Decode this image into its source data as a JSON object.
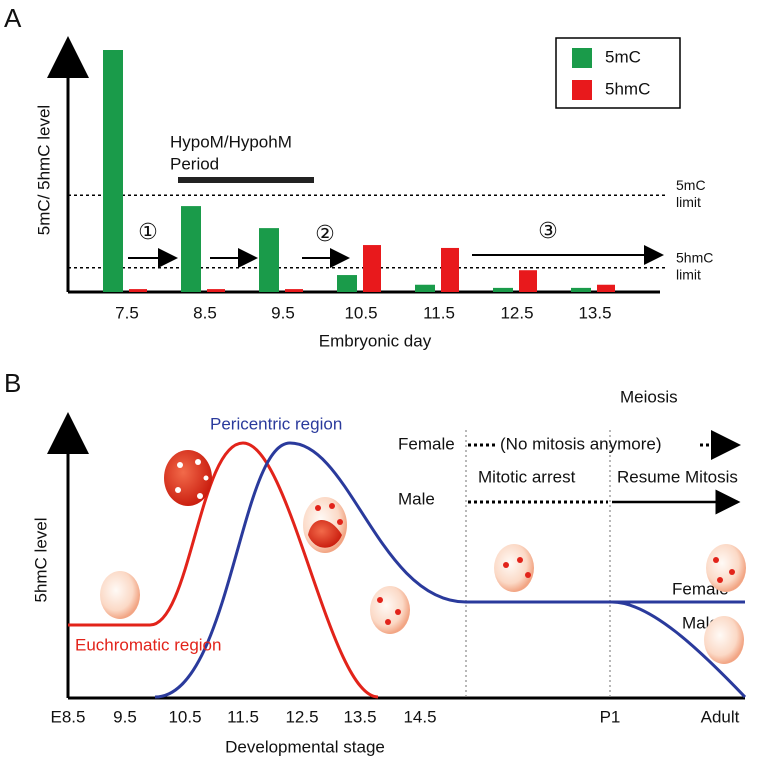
{
  "chart_data": {
    "type": "bar",
    "panel_label": "A",
    "y_label": "5mC/ 5hmC level",
    "x_label": "Embryonic day",
    "categories": [
      "7.5",
      "8.5",
      "9.5",
      "10.5",
      "11.5",
      "12.5",
      "13.5"
    ],
    "series": [
      {
        "name": "5mC",
        "color": "#1a9b4a",
        "values": [
          100,
          35.5,
          26.4,
          7,
          3,
          1.7,
          1.7
        ]
      },
      {
        "name": "5hmC",
        "color": "#e8191c",
        "values": [
          1.2,
          1.2,
          1.2,
          19.4,
          18.2,
          9,
          3
        ]
      }
    ],
    "ylim": [
      0,
      100
    ],
    "legend": "top-right",
    "reference_lines": [
      {
        "value": 40,
        "label_lines": [
          "5mC",
          "limit"
        ]
      },
      {
        "value": 10,
        "label_lines": [
          "5hmC",
          "limit"
        ]
      }
    ],
    "annotations": {
      "period": [
        "HypoM/HypohM",
        "Period"
      ],
      "steps": [
        "①",
        "②",
        "③"
      ]
    }
  },
  "panel_b": {
    "panel_label": "B",
    "y_label": "5hmC level",
    "x_label": "Developmental stage",
    "x_labels": [
      "E8.5",
      "9.5",
      "10.5",
      "11.5",
      "12.5",
      "13.5",
      "14.5",
      "P1",
      "Adult"
    ],
    "curve_labels": {
      "pericentric": "Pericentric region",
      "euchromatic": "Euchromatic region",
      "female": "Female",
      "male": "Male"
    },
    "legend": {
      "meiosis": "Meiosis",
      "female": "Female",
      "no_mitosis": "(No mitosis anymore)",
      "male": "Male",
      "mitotic_arrest": "Mitotic arrest",
      "resume": "Resume Mitosis"
    }
  }
}
